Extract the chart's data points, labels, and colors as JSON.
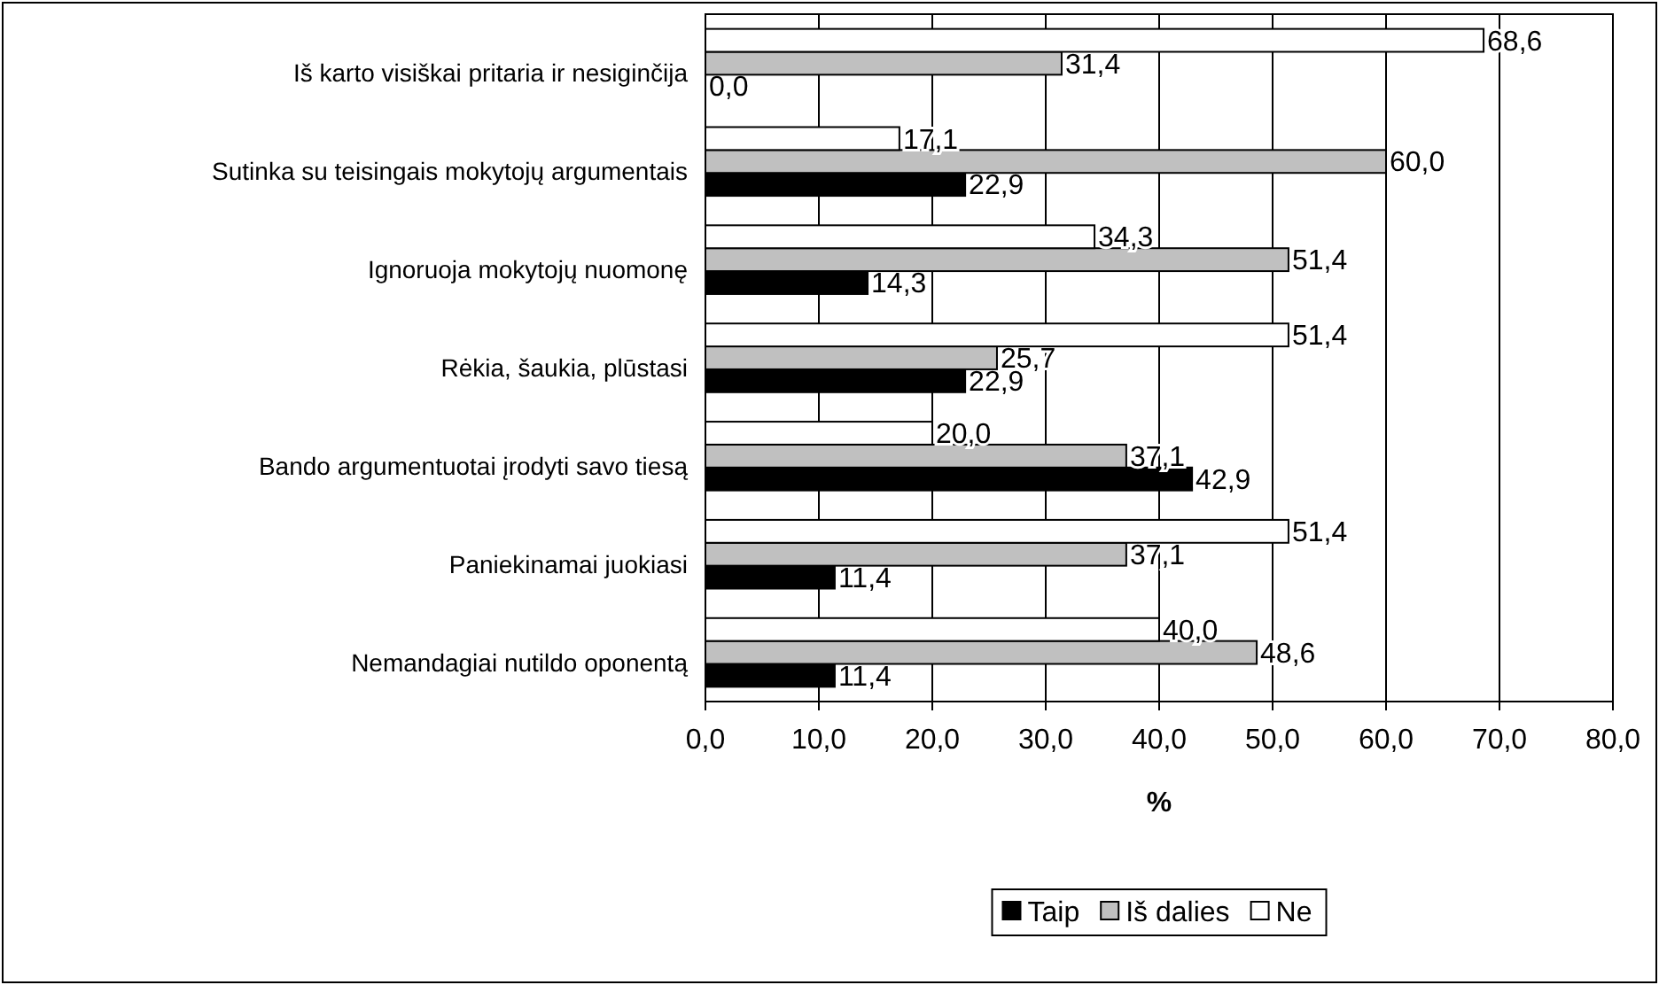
{
  "chart_data": {
    "type": "bar",
    "orientation": "horizontal",
    "xlabel": "%",
    "categories": [
      "Iš karto visiškai pritaria ir nesiginčija",
      "Sutinka su teisingais mokytojų argumentais",
      "Ignoruoja mokytojų nuomonę",
      "Rėkia, šaukia, plūstasi",
      "Bando argumentuotai įrodyti savo tiesą",
      "Paniekinamai juokiasi",
      "Nemandagiai nutildo oponentą"
    ],
    "series": [
      {
        "name": "Taip",
        "color": "#000000",
        "values": [
          0.0,
          22.9,
          14.3,
          22.9,
          42.9,
          11.4,
          11.4
        ],
        "value_labels": [
          "0,0",
          "22,9",
          "14,3",
          "22,9",
          "42,9",
          "11,4",
          "11,4"
        ]
      },
      {
        "name": "Iš dalies",
        "color": "#c0c0c0",
        "values": [
          31.4,
          60.0,
          51.4,
          25.7,
          37.1,
          37.1,
          48.6
        ],
        "value_labels": [
          "31,4",
          "60,0",
          "51,4",
          "25,7",
          "37,1",
          "37,1",
          "48,6"
        ]
      },
      {
        "name": "Ne",
        "color": "#ffffff",
        "values": [
          68.6,
          17.1,
          34.3,
          51.4,
          20.0,
          51.4,
          40.0
        ],
        "value_labels": [
          "68,6",
          "17,1",
          "34,3",
          "51,4",
          "20,0",
          "51,4",
          "40,0"
        ]
      }
    ],
    "xlim": [
      0,
      80
    ],
    "xticks": [
      {
        "value": 0,
        "label": "0,0"
      },
      {
        "value": 10,
        "label": "10,0"
      },
      {
        "value": 20,
        "label": "20,0"
      },
      {
        "value": 30,
        "label": "30,0"
      },
      {
        "value": 40,
        "label": "40,0"
      },
      {
        "value": 50,
        "label": "50,0"
      },
      {
        "value": 60,
        "label": "60,0"
      },
      {
        "value": 70,
        "label": "70,0"
      },
      {
        "value": 80,
        "label": "80,0"
      }
    ],
    "grid": "x",
    "legend": "bottom"
  }
}
